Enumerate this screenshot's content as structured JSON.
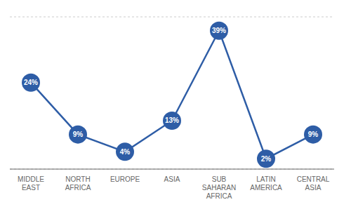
{
  "chart_data": {
    "type": "line",
    "categories": [
      "MIDDLE\nEAST",
      "NORTH\nAFRICA",
      "EUROPE",
      "ASIA",
      "SUB\nSAHARAN\nAFRICA",
      "LATIN\nAMERICA",
      "CENTRAL\nASIA"
    ],
    "values": [
      24,
      9,
      4,
      13,
      39,
      2,
      9
    ],
    "value_labels": [
      "24%",
      "9%",
      "4%",
      "13%",
      "39%",
      "2%",
      "9%"
    ],
    "data_labels": true,
    "color": "#2E5DA6",
    "marker": "circle",
    "ylim": [
      -1,
      43
    ],
    "yticks": [
      -1,
      3.4,
      7.8,
      12.2,
      16.6,
      21,
      25.4,
      29.8,
      34.2,
      38.6,
      43
    ],
    "grid": true,
    "tick_labels": "x"
  }
}
